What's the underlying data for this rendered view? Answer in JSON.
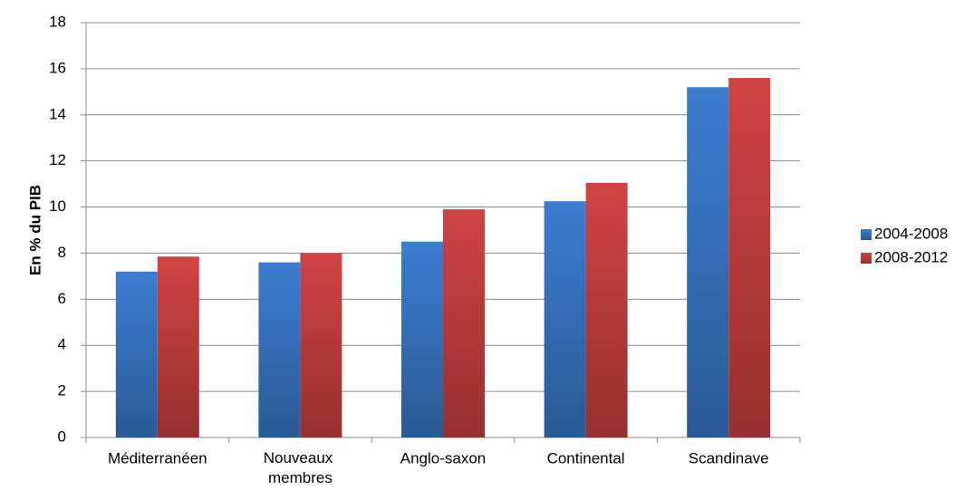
{
  "chart_data": {
    "type": "bar",
    "y_label": "En % du PIB",
    "categories": [
      "Méditerranéen",
      "Nouveaux membres",
      "Anglo-saxon",
      "Continental",
      "Scandinave"
    ],
    "series": [
      {
        "name": "2004-2008",
        "color": "#3b7dd0",
        "values": [
          7.2,
          7.6,
          8.5,
          10.25,
          15.2
        ]
      },
      {
        "name": "2008-2012",
        "color": "#d04343",
        "values": [
          7.85,
          8.0,
          9.9,
          11.05,
          15.6
        ]
      }
    ],
    "ylim": [
      0,
      18
    ],
    "yticks": [
      0,
      2,
      4,
      6,
      8,
      10,
      12,
      14,
      16,
      18
    ],
    "grid": true,
    "legend": "right"
  }
}
